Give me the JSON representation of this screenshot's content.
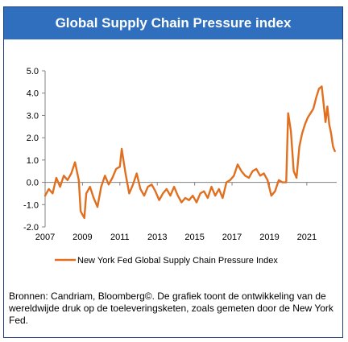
{
  "title": "Global Supply Chain Pressure index",
  "caption": "Bronnen: Candriam, Bloomberg©. De grafiek toont de ontwikkeling van de wereldwijde druk op de toeleveringsketen, zoals gemeten door de New York Fed.",
  "chart_data": {
    "type": "line",
    "title": "Global Supply Chain Pressure index",
    "xlabel": "",
    "ylabel": "",
    "xlim": [
      2007,
      2022.6
    ],
    "ylim": [
      -2.0,
      5.0
    ],
    "x_ticks": [
      "2007",
      "2009",
      "2011",
      "2013",
      "2015",
      "2017",
      "2019",
      "2021"
    ],
    "y_ticks": [
      "5.0",
      "4.0",
      "3.0",
      "2.0",
      "1.0",
      "0.0",
      "-1.0",
      "-2.0"
    ],
    "grid": false,
    "legend": "bottom",
    "series": [
      {
        "name": "New York Fed Global Supply Chain Pressure Index",
        "color": "#e07020",
        "x": [
          2007.0,
          2007.2,
          2007.4,
          2007.6,
          2007.8,
          2008.0,
          2008.2,
          2008.4,
          2008.6,
          2008.8,
          2008.9,
          2009.1,
          2009.2,
          2009.4,
          2009.6,
          2009.8,
          2010.0,
          2010.2,
          2010.4,
          2010.6,
          2010.8,
          2011.0,
          2011.1,
          2011.3,
          2011.5,
          2011.7,
          2011.9,
          2012.1,
          2012.3,
          2012.5,
          2012.7,
          2012.9,
          2013.1,
          2013.3,
          2013.5,
          2013.7,
          2013.9,
          2014.1,
          2014.3,
          2014.5,
          2014.7,
          2014.9,
          2015.1,
          2015.3,
          2015.5,
          2015.7,
          2015.9,
          2016.1,
          2016.3,
          2016.5,
          2016.7,
          2016.9,
          2017.1,
          2017.3,
          2017.5,
          2017.7,
          2017.9,
          2018.1,
          2018.3,
          2018.5,
          2018.7,
          2018.9,
          2019.1,
          2019.3,
          2019.5,
          2019.7,
          2019.9,
          2020.0,
          2020.15,
          2020.3,
          2020.45,
          2020.6,
          2020.75,
          2020.9,
          2021.05,
          2021.2,
          2021.35,
          2021.5,
          2021.65,
          2021.8,
          2021.9,
          2022.0,
          2022.1,
          2022.2,
          2022.3,
          2022.4,
          2022.5
        ],
        "values": [
          -0.6,
          -0.3,
          -0.5,
          0.2,
          -0.2,
          0.3,
          0.1,
          0.4,
          0.9,
          0.1,
          -1.3,
          -1.6,
          -0.5,
          -0.2,
          -0.7,
          -1.1,
          -0.2,
          0.3,
          -0.1,
          0.2,
          0.6,
          0.7,
          1.5,
          0.4,
          -0.5,
          -0.1,
          0.4,
          -0.3,
          -0.6,
          -0.2,
          -0.1,
          -0.4,
          -0.8,
          -0.5,
          -0.3,
          -0.6,
          -0.2,
          -0.6,
          -0.9,
          -0.7,
          -0.8,
          -0.6,
          -0.9,
          -0.5,
          -0.4,
          -0.7,
          -0.2,
          -0.6,
          -0.3,
          -0.7,
          0.0,
          0.1,
          0.3,
          0.8,
          0.5,
          0.3,
          0.2,
          0.5,
          0.6,
          0.3,
          0.4,
          0.1,
          -0.6,
          -0.4,
          0.1,
          0.0,
          0.0,
          3.1,
          2.3,
          0.5,
          0.2,
          1.6,
          2.2,
          2.6,
          2.9,
          3.1,
          3.3,
          3.8,
          4.2,
          4.3,
          3.5,
          2.7,
          3.4,
          2.6,
          2.2,
          1.6,
          1.4
        ]
      }
    ]
  }
}
